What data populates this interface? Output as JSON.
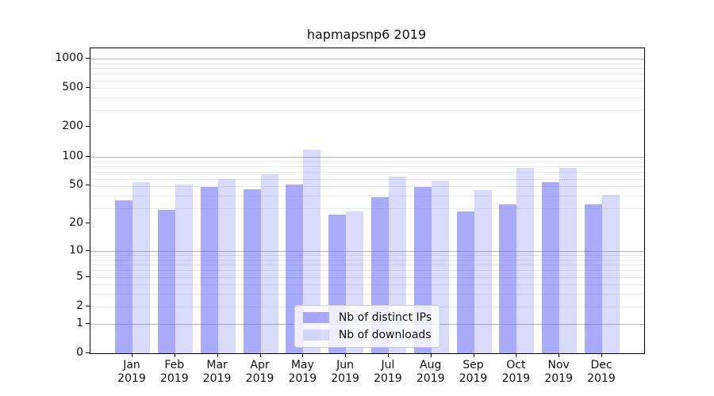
{
  "chart_data": {
    "type": "bar",
    "title": "hapmapsnp6 2019",
    "categories": [
      "Jan",
      "Feb",
      "Mar",
      "Apr",
      "May",
      "Jun",
      "Jul",
      "Aug",
      "Sep",
      "Oct",
      "Nov",
      "Dec"
    ],
    "category_year": "2019",
    "series": [
      {
        "key": "distinct-ips",
        "name": "Nb of distinct IPs",
        "color": "rgba(100,100,245,0.55)",
        "values": [
          35,
          28,
          48,
          46,
          51,
          25,
          38,
          48,
          27,
          32,
          54,
          32
        ]
      },
      {
        "key": "downloads",
        "name": "Nb of downloads",
        "color": "rgba(100,100,245,0.24)",
        "values": [
          54,
          51,
          58,
          65,
          117,
          27,
          62,
          56,
          45,
          76,
          76,
          40
        ]
      }
    ],
    "yscale": "log1p",
    "yticks": [
      0,
      1,
      2,
      5,
      10,
      20,
      50,
      100,
      200,
      500,
      1000
    ],
    "ylim": [
      0,
      1270
    ],
    "xlabel": "",
    "ylabel": "",
    "grid": true,
    "legend_position": "lower center"
  },
  "colors": {
    "bar_dark": "#aaaaf7",
    "bar_light": "#dadaf9",
    "grid_major": "#b5b5b5",
    "grid_minor": "#e9e9e9",
    "spine": "#000000",
    "background": "#ffffff",
    "text": "#111111",
    "legend_border": "#cccccc"
  }
}
